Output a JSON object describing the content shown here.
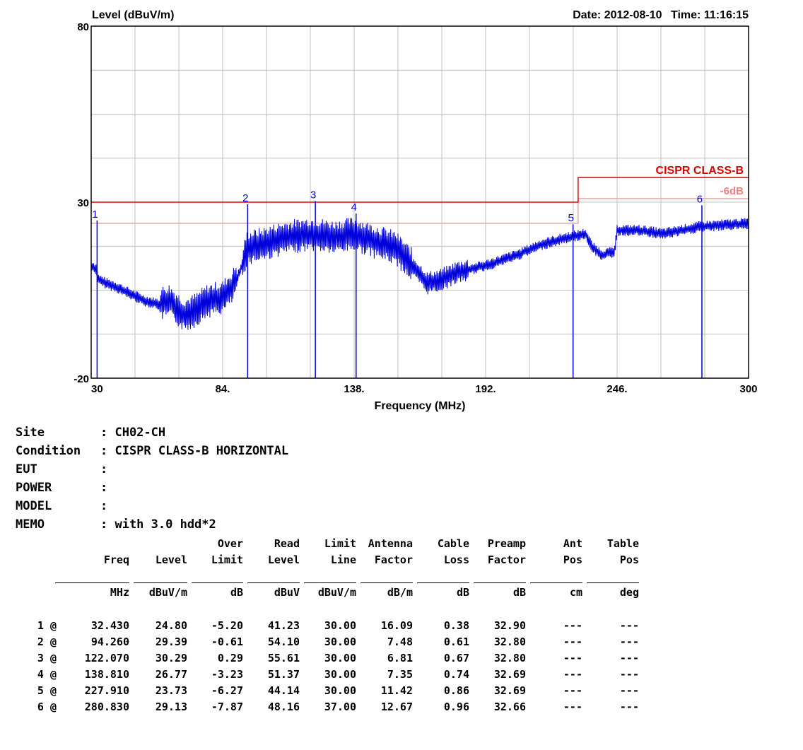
{
  "header": {
    "ylabel": "Level (dBuV/m)",
    "date_label": "Date:",
    "date": "2012-08-10",
    "time_label": "Time:",
    "time": "11:16:15"
  },
  "chart_data": {
    "type": "line",
    "xlabel": "Frequency (MHz)",
    "ylabel": "Level (dBuV/m)",
    "xlim": [
      30,
      300
    ],
    "ylim": [
      -20,
      80
    ],
    "y_tick_labels": [
      "80",
      "30",
      "-20"
    ],
    "x_tick_labels": [
      "30",
      "84.",
      "138.",
      "192.",
      "246.",
      "300"
    ],
    "x_ticks": [
      30,
      84,
      138,
      192,
      246,
      300
    ],
    "grid": true,
    "colors": {
      "trace": "#0000dd",
      "limit": "#dd0000",
      "margin": "#f0a0a0",
      "grid": "#c0c0c0"
    },
    "limit_line": {
      "name": "CISPR CLASS-B",
      "points": [
        [
          30,
          30
        ],
        [
          230,
          30
        ],
        [
          230,
          37
        ],
        [
          300,
          37
        ]
      ]
    },
    "margin_line": {
      "name": "-6dB",
      "points": [
        [
          30,
          24
        ],
        [
          230,
          24
        ],
        [
          230,
          31
        ],
        [
          300,
          31
        ]
      ]
    },
    "trace_envelope": [
      [
        30,
        12
      ],
      [
        32,
        11
      ],
      [
        33,
        8
      ],
      [
        36,
        7
      ],
      [
        40,
        6
      ],
      [
        46,
        4
      ],
      [
        52,
        2
      ],
      [
        58,
        1
      ],
      [
        62,
        2
      ],
      [
        68,
        -2
      ],
      [
        72,
        -1
      ],
      [
        78,
        2
      ],
      [
        84,
        3
      ],
      [
        88,
        6
      ],
      [
        91,
        10
      ],
      [
        94,
        17
      ],
      [
        100,
        18
      ],
      [
        110,
        20
      ],
      [
        120,
        21
      ],
      [
        130,
        20
      ],
      [
        138,
        21
      ],
      [
        146,
        19
      ],
      [
        155,
        17
      ],
      [
        162,
        12
      ],
      [
        168,
        7
      ],
      [
        174,
        8
      ],
      [
        180,
        10
      ],
      [
        192,
        12
      ],
      [
        205,
        15
      ],
      [
        215,
        18
      ],
      [
        226,
        20
      ],
      [
        233,
        21
      ],
      [
        236,
        17
      ],
      [
        240,
        15
      ],
      [
        245,
        16
      ],
      [
        246,
        22
      ],
      [
        255,
        22
      ],
      [
        265,
        21
      ],
      [
        280,
        23
      ],
      [
        300,
        24
      ]
    ],
    "markers": [
      {
        "label": "1",
        "freq": 32.43,
        "level": 24.8
      },
      {
        "label": "2",
        "freq": 94.26,
        "level": 29.39
      },
      {
        "label": "3",
        "freq": 122.07,
        "level": 30.29
      },
      {
        "label": "4",
        "freq": 138.81,
        "level": 26.77
      },
      {
        "label": "5",
        "freq": 227.91,
        "level": 23.73
      },
      {
        "label": "6",
        "freq": 280.83,
        "level": 29.13
      }
    ]
  },
  "info": {
    "site_key": "Site",
    "site": ": CH02-CH",
    "condition_key": "Condition",
    "condition": ": CISPR CLASS-B HORIZONTAL",
    "eut_key": "EUT",
    "eut": ":",
    "power_key": "POWER",
    "power": ":",
    "model_key": "MODEL",
    "model": ":",
    "memo_key": "MEMO",
    "memo": ": with 3.0 hdd*2"
  },
  "table": {
    "header_line1": [
      "",
      "",
      "",
      "Over",
      "Read",
      "Limit",
      "Antenna",
      "Cable",
      "Preamp",
      "Ant",
      "Table"
    ],
    "header_line2": [
      "",
      "Freq",
      "Level",
      "Limit",
      "Level",
      "Line",
      "Factor",
      "Loss",
      "Factor",
      "Pos",
      "Pos"
    ],
    "units": [
      "",
      "MHz",
      "dBuV/m",
      "dB",
      "dBuV",
      "dBuV/m",
      "dB/m",
      "dB",
      "dB",
      "cm",
      "deg"
    ],
    "rows": [
      [
        "1 @",
        "32.430",
        "24.80",
        "-5.20",
        "41.23",
        "30.00",
        "16.09",
        "0.38",
        "32.90",
        "---",
        "---"
      ],
      [
        "2 @",
        "94.260",
        "29.39",
        "-0.61",
        "54.10",
        "30.00",
        "7.48",
        "0.61",
        "32.80",
        "---",
        "---"
      ],
      [
        "3 @",
        "122.070",
        "30.29",
        "0.29",
        "55.61",
        "30.00",
        "6.81",
        "0.67",
        "32.80",
        "---",
        "---"
      ],
      [
        "4 @",
        "138.810",
        "26.77",
        "-3.23",
        "51.37",
        "30.00",
        "7.35",
        "0.74",
        "32.69",
        "---",
        "---"
      ],
      [
        "5 @",
        "227.910",
        "23.73",
        "-6.27",
        "44.14",
        "30.00",
        "11.42",
        "0.86",
        "32.69",
        "---",
        "---"
      ],
      [
        "6 @",
        "280.830",
        "29.13",
        "-7.87",
        "48.16",
        "37.00",
        "12.67",
        "0.96",
        "32.66",
        "---",
        "---"
      ]
    ]
  }
}
